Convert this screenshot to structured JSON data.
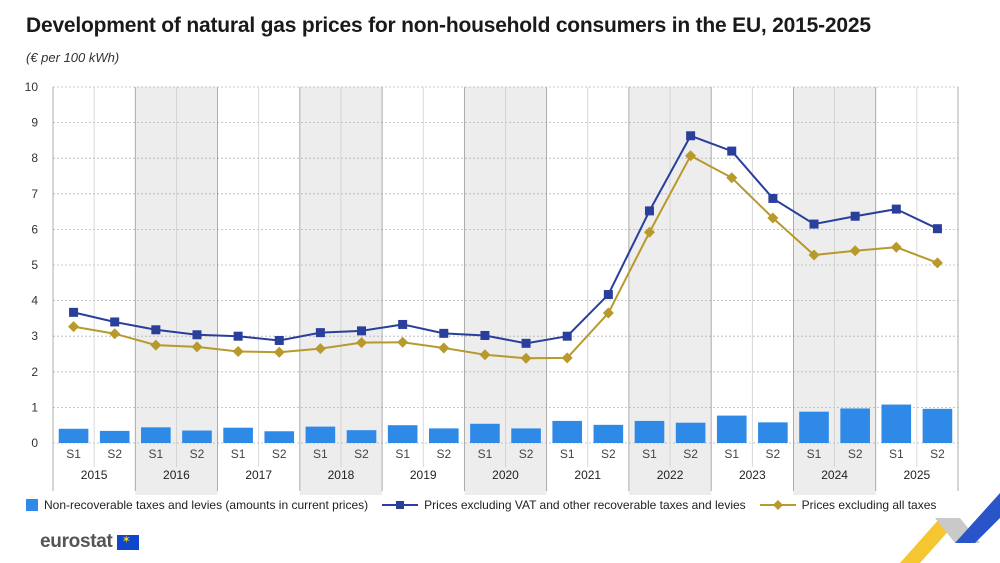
{
  "header": {
    "title": "Development of natural gas prices for non-household consumers in the EU, 2015-2025",
    "subtitle": "(€ per 100 kWh)"
  },
  "legend": {
    "bars_label": "Non-recoverable taxes and levies (amounts in current prices)",
    "vat_label": "Prices excluding VAT and other recoverable taxes and levies",
    "all_label": "Prices excluding all taxes"
  },
  "logo": {
    "text": "eurostat"
  },
  "colors": {
    "bar": "#2e8ae6",
    "vat_line": "#2a3f9c",
    "all_line": "#b8992c",
    "grid": "#b5b5b5",
    "band": "#ededed"
  },
  "chart_data": {
    "type": "bar",
    "title": "Development of natural gas prices for non-household consumers in the EU, 2015-2025",
    "subtitle": "(€ per 100 kWh)",
    "ylim": [
      0,
      10
    ],
    "yticks": [
      0,
      1,
      2,
      3,
      4,
      5,
      6,
      7,
      8,
      9,
      10
    ],
    "grid": true,
    "legend_position": "bottom",
    "categories": [
      "S1",
      "S2",
      "S1",
      "S2",
      "S1",
      "S2",
      "S1",
      "S2",
      "S1",
      "S2",
      "S1",
      "S2",
      "S1",
      "S2",
      "S1",
      "S2",
      "S1",
      "S2",
      "S1",
      "S2",
      "S1",
      "S2"
    ],
    "years": [
      "2015",
      "2016",
      "2017",
      "2018",
      "2019",
      "2020",
      "2021",
      "2022",
      "2023",
      "2024",
      "2025"
    ],
    "series": [
      {
        "name": "Non-recoverable taxes and levies (amounts in current prices)",
        "type": "bar",
        "values": [
          0.4,
          0.34,
          0.44,
          0.35,
          0.43,
          0.33,
          0.46,
          0.36,
          0.5,
          0.41,
          0.54,
          0.41,
          0.62,
          0.51,
          0.62,
          0.57,
          0.77,
          0.58,
          0.88,
          0.97,
          1.08,
          0.96
        ]
      },
      {
        "name": "Prices excluding VAT and other recoverable taxes and levies",
        "type": "line",
        "values": [
          3.67,
          3.4,
          3.18,
          3.04,
          3.0,
          2.88,
          3.1,
          3.15,
          3.33,
          3.08,
          3.02,
          2.8,
          3.0,
          4.17,
          6.52,
          8.63,
          8.2,
          6.87,
          6.15,
          6.37,
          6.57,
          6.02
        ]
      },
      {
        "name": "Prices excluding all taxes",
        "type": "line",
        "values": [
          3.27,
          3.07,
          2.75,
          2.7,
          2.57,
          2.55,
          2.65,
          2.82,
          2.83,
          2.67,
          2.48,
          2.38,
          2.39,
          3.65,
          5.92,
          8.07,
          7.45,
          6.32,
          5.28,
          5.4,
          5.5,
          5.06
        ]
      }
    ]
  }
}
